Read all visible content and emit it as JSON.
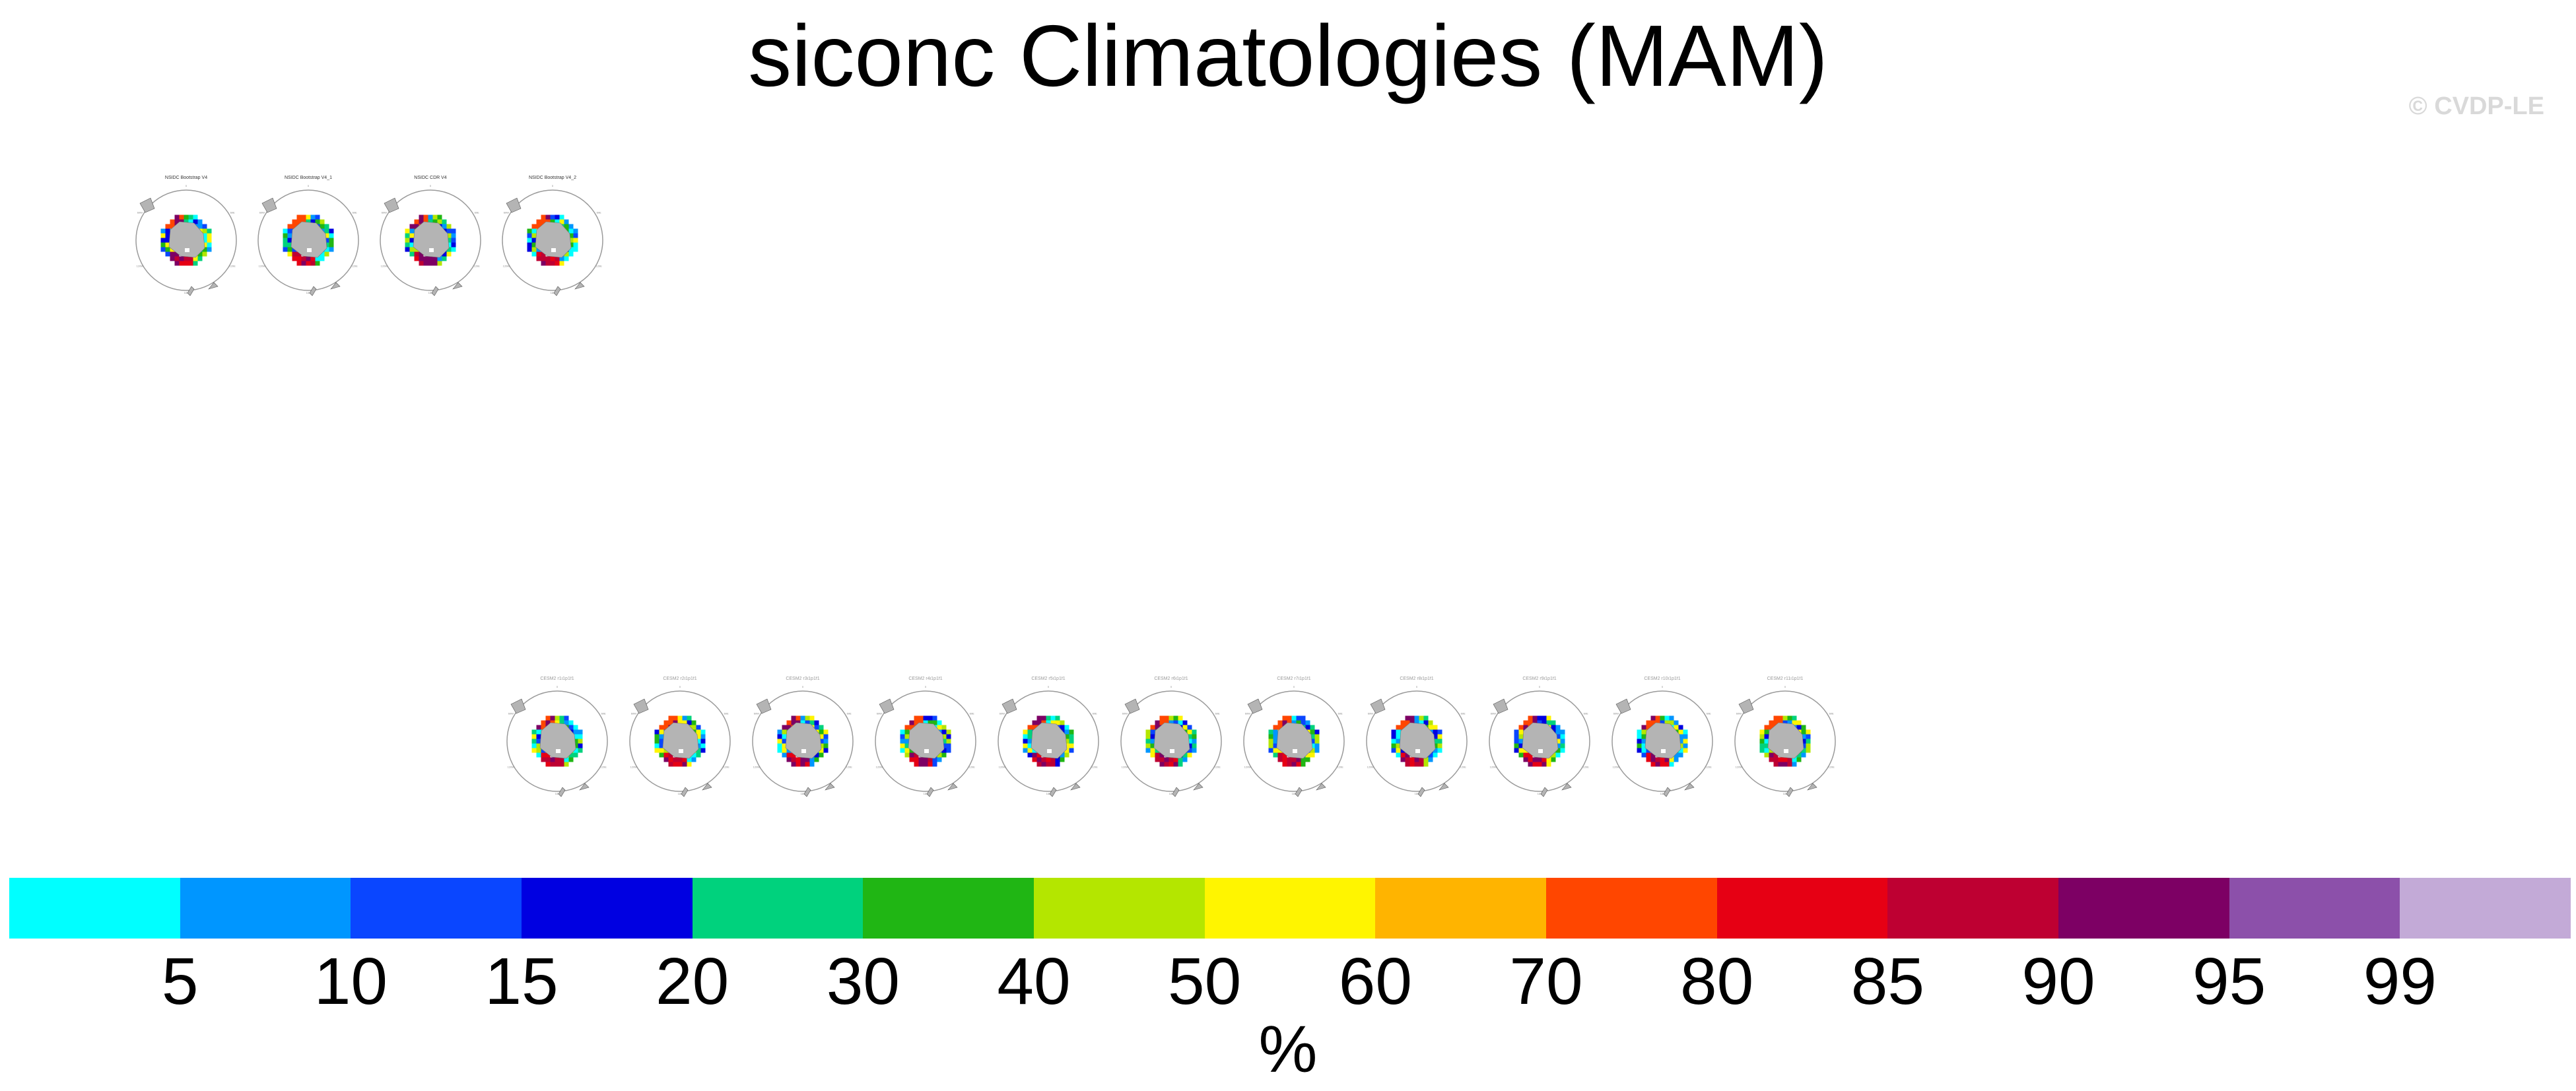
{
  "title": "siconc Climatologies (MAM)",
  "copyright": "© CVDP-LE",
  "observation_panels": [
    {
      "title": "NSIDC Bootstrap V4"
    },
    {
      "title": "NSIDC Bootstrap V4_1"
    },
    {
      "title": "NSIDC CDR V4"
    },
    {
      "title": "NSIDC Bootstrap V4_2"
    }
  ],
  "model_panels": [
    {
      "title": "CESM2 r1i1p1f1"
    },
    {
      "title": "CESM2 r2i1p1f1"
    },
    {
      "title": "CESM2 r3i1p1f1"
    },
    {
      "title": "CESM2 r4i1p1f1"
    },
    {
      "title": "CESM2 r5i1p1f1"
    },
    {
      "title": "CESM2 r6i1p1f1"
    },
    {
      "title": "CESM2 r7i1p1f1"
    },
    {
      "title": "CESM2 r8i1p1f1"
    },
    {
      "title": "CESM2 r9i1p1f1"
    },
    {
      "title": "CESM2 r10i1p1f1"
    },
    {
      "title": "CESM2 r11i1p1f1"
    }
  ],
  "chart_data": {
    "type": "heatmap",
    "title": "siconc Climatologies (MAM)",
    "projection": "south polar stereographic",
    "land_color": "#b4b4b4",
    "colorbar": {
      "units": "%",
      "levels": [
        "5",
        "10",
        "15",
        "20",
        "30",
        "40",
        "50",
        "60",
        "70",
        "80",
        "85",
        "90",
        "95",
        "99"
      ],
      "colors": [
        "#00ffff",
        "#0096ff",
        "#0a46ff",
        "#0000e1",
        "#00d27d",
        "#20b614",
        "#b4e600",
        "#fff500",
        "#ffb400",
        "#ff4600",
        "#e60014",
        "#be0032",
        "#7d0064",
        "#8c50aa",
        "#c3aad7"
      ]
    }
  }
}
